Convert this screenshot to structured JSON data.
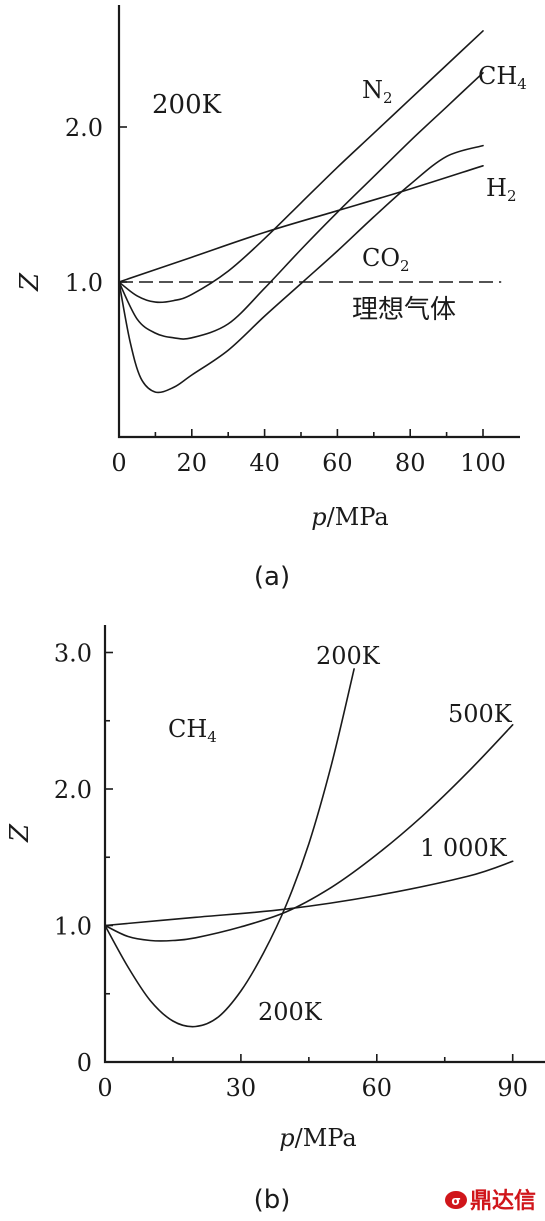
{
  "chart_data": [
    {
      "type": "line",
      "caption": "(a)",
      "annotation": "200K",
      "xlabel": "p/MPa",
      "ylabel": "Z",
      "xlim": [
        0,
        110
      ],
      "ylim": [
        0,
        2.7
      ],
      "x_ticks": [
        0,
        20,
        40,
        60,
        80,
        100
      ],
      "x_tick_labels": [
        "0",
        "20",
        "40",
        "60",
        "80",
        "100"
      ],
      "y_ticks": [
        1.0,
        2.0
      ],
      "y_tick_labels": [
        "1.0",
        "2.0"
      ],
      "ideal_gas": {
        "name": "理想气体",
        "y": 1.0,
        "x_range": [
          0,
          105
        ],
        "style": "dashed"
      },
      "series": [
        {
          "name": "N₂",
          "x": [
            0,
            5,
            10,
            15,
            20,
            30,
            40,
            50,
            60,
            70,
            80,
            90,
            100
          ],
          "y": [
            1.0,
            0.91,
            0.87,
            0.88,
            0.92,
            1.07,
            1.28,
            1.51,
            1.74,
            1.96,
            2.18,
            2.4,
            2.62
          ]
        },
        {
          "name": "CH₄",
          "x": [
            0,
            5,
            10,
            15,
            20,
            30,
            40,
            50,
            60,
            70,
            80,
            90,
            100
          ],
          "y": [
            1.0,
            0.76,
            0.67,
            0.64,
            0.64,
            0.73,
            0.96,
            1.21,
            1.45,
            1.68,
            1.91,
            2.13,
            2.35
          ]
        },
        {
          "name": "CO₂",
          "x": [
            0,
            3,
            6,
            10,
            15,
            20,
            30,
            40,
            50,
            60,
            70,
            80,
            90,
            100
          ],
          "y": [
            1.0,
            0.62,
            0.38,
            0.29,
            0.32,
            0.4,
            0.56,
            0.78,
            0.99,
            1.2,
            1.42,
            1.63,
            1.81,
            1.88
          ]
        },
        {
          "name": "H₂",
          "x": [
            0,
            20,
            40,
            60,
            80,
            100
          ],
          "y": [
            1.0,
            1.16,
            1.32,
            1.46,
            1.6,
            1.75
          ]
        }
      ]
    },
    {
      "type": "line",
      "caption": "(b)",
      "annotation": "CH₄",
      "xlabel": "p/MPa",
      "ylabel": "Z",
      "xlim": [
        0,
        96
      ],
      "ylim": [
        0,
        3.2
      ],
      "x_ticks": [
        0,
        30,
        60,
        90
      ],
      "x_tick_labels": [
        "0",
        "30",
        "60",
        "90"
      ],
      "y_ticks": [
        0,
        1.0,
        2.0,
        3.0
      ],
      "y_tick_labels": [
        "0",
        "1.0",
        "2.0",
        "3.0"
      ],
      "series": [
        {
          "name": "200K",
          "x": [
            0,
            5,
            10,
            15,
            20,
            25,
            30,
            35,
            40,
            45,
            50,
            55
          ],
          "y": [
            1.0,
            0.7,
            0.45,
            0.3,
            0.26,
            0.33,
            0.52,
            0.8,
            1.15,
            1.6,
            2.18,
            2.88
          ]
        },
        {
          "name": "500K",
          "x": [
            0,
            5,
            10,
            15,
            20,
            30,
            40,
            50,
            60,
            70,
            80,
            90
          ],
          "y": [
            1.0,
            0.92,
            0.89,
            0.89,
            0.91,
            0.99,
            1.1,
            1.28,
            1.52,
            1.8,
            2.12,
            2.47
          ]
        },
        {
          "name": "1 000K",
          "x": [
            0,
            20,
            40,
            60,
            80,
            90
          ],
          "y": [
            1.0,
            1.06,
            1.12,
            1.22,
            1.36,
            1.47
          ]
        }
      ]
    }
  ],
  "watermark": {
    "icon": "dingdaxin-logo-icon",
    "text": "鼎达信",
    "color": "#d0161b"
  }
}
